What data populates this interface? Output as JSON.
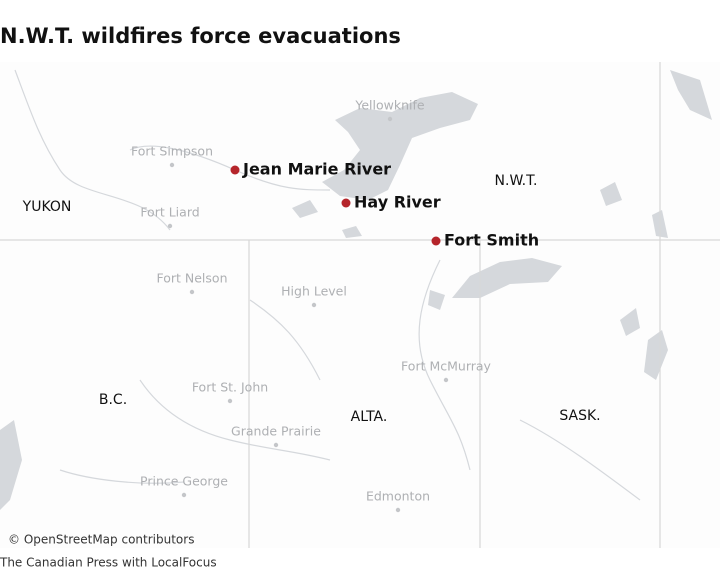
{
  "title": "N.W.T. wildfires force evacuations",
  "highlighted_places": [
    "Jean Marie River",
    "Hay River",
    "Fort Smith"
  ],
  "places": [
    "Yellowknife",
    "Fort Simpson",
    "Fort Liard",
    "Fort Nelson",
    "High Level",
    "Fort McMurray",
    "Fort St. John",
    "Grande Prairie",
    "Prince George",
    "Edmonton"
  ],
  "regions": [
    "YUKON",
    "N.W.T.",
    "B.C.",
    "ALTA.",
    "SASK."
  ],
  "attribution": "© OpenStreetMap contributors",
  "credit": "The Canadian Press with LocalFocus"
}
